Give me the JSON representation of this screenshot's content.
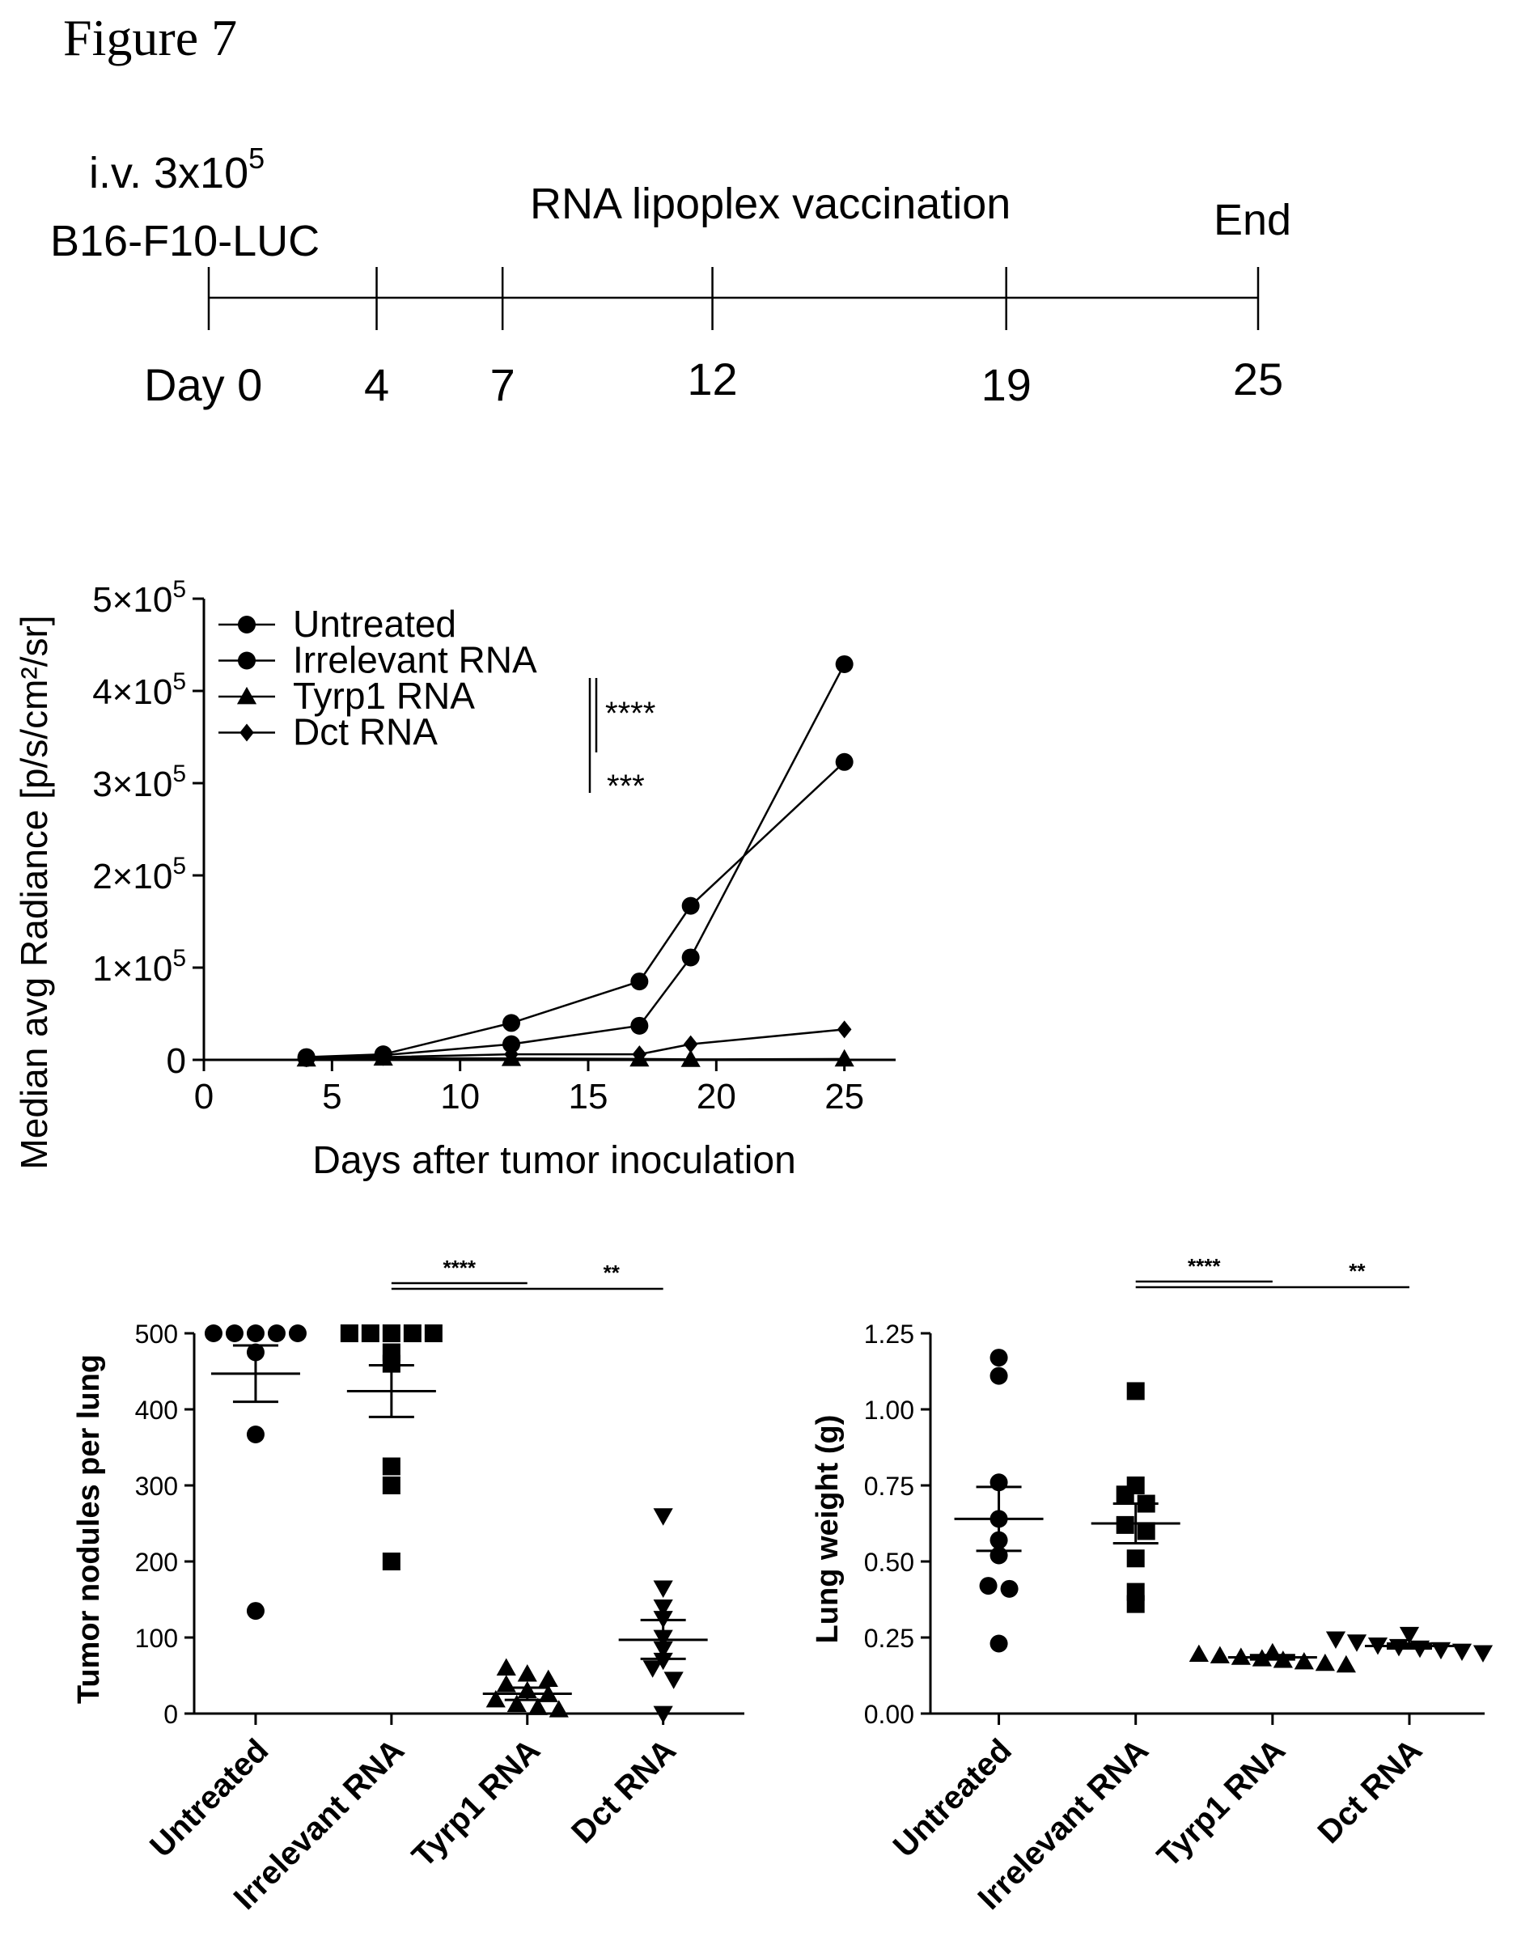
{
  "figure_label": "Figure 7",
  "timeline": {
    "injection_line1": "i.v. 3x10",
    "injection_sup": "5",
    "injection_line2": "B16-F10-LUC",
    "vaccination_label": "RNA lipoplex vaccination",
    "end_label": "End",
    "day_labels": [
      "Day 0",
      "4",
      "7",
      "12",
      "19",
      "25"
    ],
    "days": [
      0,
      4,
      7,
      12,
      19,
      25
    ]
  },
  "chart_data": [
    {
      "type": "line",
      "title": "",
      "xlabel": "Days after tumor inoculation",
      "ylabel": "Median avg Radiance [p/s/cm²/sr]",
      "xlim": [
        0,
        27
      ],
      "ylim": [
        0,
        500000
      ],
      "x_ticks": [
        0,
        5,
        10,
        15,
        20,
        25
      ],
      "y_ticks": [
        {
          "value": 0,
          "label": "0"
        },
        {
          "value": 100000,
          "label": "1×10",
          "sup": "5"
        },
        {
          "value": 200000,
          "label": "2×10",
          "sup": "5"
        },
        {
          "value": 300000,
          "label": "3×10",
          "sup": "5"
        },
        {
          "value": 400000,
          "label": "4×10",
          "sup": "5"
        },
        {
          "value": 500000,
          "label": "5×10",
          "sup": "5"
        }
      ],
      "legend_position": "top-left",
      "series": [
        {
          "name": "Untreated",
          "marker": "circle",
          "x": [
            4,
            7,
            12,
            17,
            19,
            25
          ],
          "y": [
            3000,
            6000,
            40000,
            85000,
            167000,
            323000
          ]
        },
        {
          "name": "Irrelevant RNA",
          "marker": "circle",
          "x": [
            4,
            7,
            12,
            17,
            19,
            25
          ],
          "y": [
            2000,
            5000,
            17000,
            37000,
            111000,
            429000
          ]
        },
        {
          "name": "Tyrp1 RNA",
          "marker": "triangle",
          "x": [
            4,
            7,
            12,
            17,
            19,
            25
          ],
          "y": [
            1000,
            2000,
            1500,
            1000,
            500,
            1000
          ]
        },
        {
          "name": "Dct RNA",
          "marker": "diamond",
          "x": [
            4,
            7,
            12,
            17,
            19,
            25
          ],
          "y": [
            1500,
            3000,
            6000,
            6000,
            17000,
            33000
          ]
        }
      ],
      "significance": [
        {
          "label": "****",
          "groups": [
            "Irrelevant RNA",
            "Tyrp1 RNA"
          ]
        },
        {
          "label": "***",
          "groups": [
            "Irrelevant RNA",
            "Dct RNA"
          ]
        }
      ]
    },
    {
      "type": "scatter",
      "title": "",
      "xlabel": "",
      "ylabel": "Tumor nodules per lung",
      "ylim": [
        0,
        500
      ],
      "y_ticks": [
        0,
        100,
        200,
        300,
        400,
        500
      ],
      "categories": [
        "Untreated",
        "Irrelevant RNA",
        "Tyrp1 RNA",
        "Dct RNA"
      ],
      "groups": [
        {
          "name": "Untreated",
          "marker": "circle",
          "values": [
            500,
            500,
            500,
            500,
            500,
            475,
            367,
            135
          ],
          "mean": 447,
          "sem_low": 410,
          "sem_high": 484
        },
        {
          "name": "Irrelevant RNA",
          "marker": "square",
          "values": [
            500,
            500,
            500,
            500,
            500,
            475,
            460,
            325,
            300,
            200
          ],
          "mean": 424,
          "sem_low": 390,
          "sem_high": 458
        },
        {
          "name": "Tyrp1 RNA",
          "marker": "triangle",
          "values": [
            60,
            52,
            45,
            38,
            30,
            25,
            18,
            12,
            8,
            5
          ],
          "mean": 26,
          "sem_low": 18,
          "sem_high": 34
        },
        {
          "name": "Dct RNA",
          "marker": "triangle-down",
          "values": [
            260,
            165,
            140,
            125,
            100,
            85,
            70,
            60,
            45,
            0
          ],
          "mean": 97,
          "sem_low": 72,
          "sem_high": 123
        }
      ],
      "significance": [
        {
          "label": "****",
          "groups": [
            "Irrelevant RNA",
            "Tyrp1 RNA"
          ]
        },
        {
          "label": "**",
          "groups": [
            "Irrelevant RNA",
            "Dct RNA"
          ]
        }
      ]
    },
    {
      "type": "scatter",
      "title": "",
      "xlabel": "",
      "ylabel": "Lung weight (g)",
      "ylim": [
        0,
        1.25
      ],
      "y_ticks": [
        "0.00",
        "0.25",
        "0.50",
        "0.75",
        "1.00",
        "1.25"
      ],
      "categories": [
        "Untreated",
        "Irrelevant RNA",
        "Tyrp1 RNA",
        "Dct RNA"
      ],
      "groups": [
        {
          "name": "Untreated",
          "marker": "circle",
          "values": [
            1.17,
            1.11,
            0.76,
            0.64,
            0.57,
            0.52,
            0.42,
            0.41,
            0.23
          ],
          "mean": 0.64,
          "sem_low": 0.535,
          "sem_high": 0.745
        },
        {
          "name": "Irrelevant RNA",
          "marker": "square",
          "values": [
            1.06,
            0.75,
            0.72,
            0.69,
            0.62,
            0.6,
            0.51,
            0.4,
            0.36
          ],
          "mean": 0.625,
          "sem_low": 0.56,
          "sem_high": 0.69
        },
        {
          "name": "Tyrp1 RNA",
          "marker": "triangle",
          "values": [
            0.2,
            0.195,
            0.19,
            0.185,
            0.18,
            0.175,
            0.17,
            0.165,
            0.16
          ],
          "mean": 0.185,
          "sem_low": 0.178,
          "sem_high": 0.192
        },
        {
          "name": "Dct RNA",
          "marker": "triangle-down",
          "values": [
            0.26,
            0.245,
            0.235,
            0.225,
            0.22,
            0.215,
            0.21,
            0.205,
            0.2
          ],
          "mean": 0.222,
          "sem_low": 0.214,
          "sem_high": 0.23
        }
      ],
      "significance": [
        {
          "label": "****",
          "groups": [
            "Irrelevant RNA",
            "Tyrp1 RNA"
          ]
        },
        {
          "label": "**",
          "groups": [
            "Irrelevant RNA",
            "Dct RNA"
          ]
        }
      ]
    }
  ]
}
